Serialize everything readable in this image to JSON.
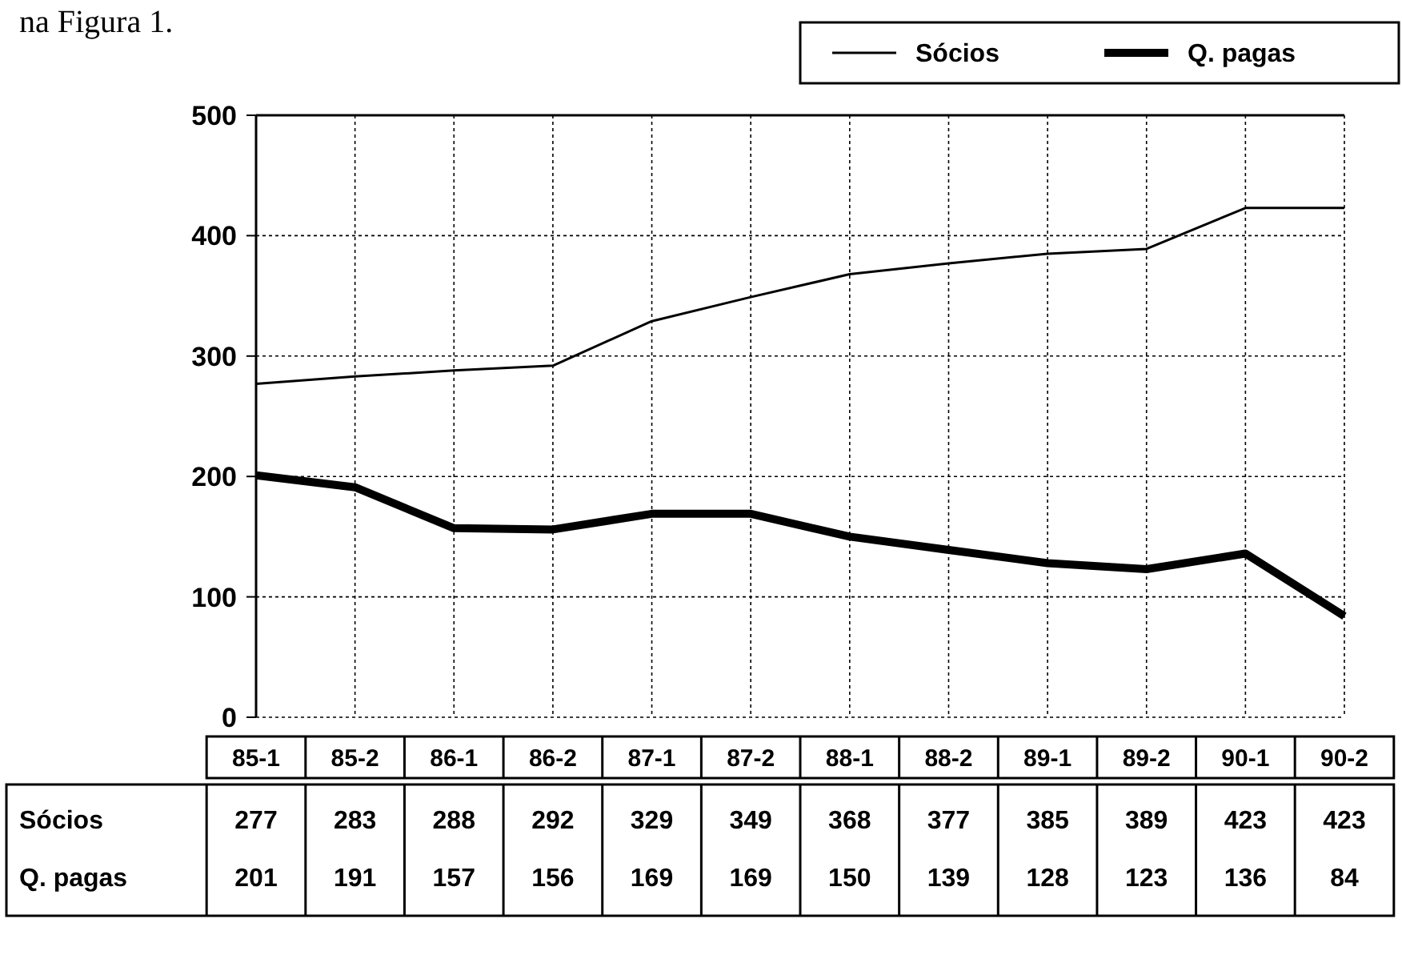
{
  "chart_data": {
    "type": "line",
    "categories": [
      "85-1",
      "85-2",
      "86-1",
      "86-2",
      "87-1",
      "87-2",
      "88-1",
      "88-2",
      "89-1",
      "89-2",
      "90-1",
      "90-2"
    ],
    "series": [
      {
        "name": "Sócios",
        "color": "#000000",
        "values": [
          277,
          283,
          288,
          292,
          329,
          349,
          368,
          377,
          385,
          389,
          423,
          423
        ]
      },
      {
        "name": "Q. pagas",
        "color": "#000000",
        "values": [
          201,
          191,
          157,
          156,
          169,
          169,
          150,
          139,
          128,
          123,
          136,
          84
        ]
      }
    ],
    "ylim": [
      0,
      500
    ],
    "yticks": [
      0,
      100,
      200,
      300,
      400,
      500
    ],
    "grid": true,
    "legend": "top right",
    "data_labels": true,
    "line_style": "solid",
    "annotations": [
      "na Figura 1."
    ]
  }
}
